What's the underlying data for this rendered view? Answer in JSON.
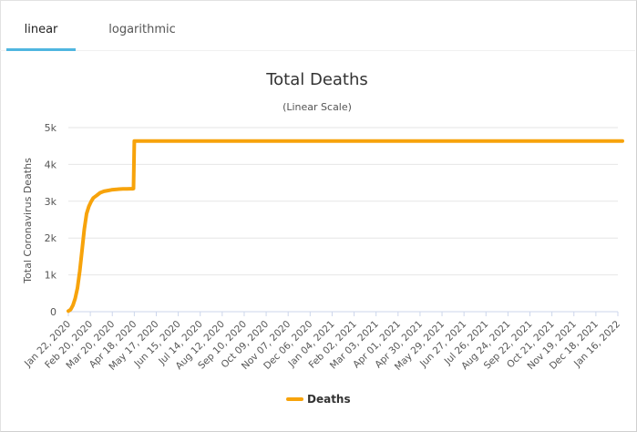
{
  "tabs": [
    {
      "label": "linear",
      "active": true
    },
    {
      "label": "logarithmic",
      "active": false
    }
  ],
  "colors": {
    "series": "#f7a30b",
    "tab_underline": "#4fb6e0",
    "grid": "#e6e6e6"
  },
  "chart_data": {
    "type": "line",
    "title": "Total Deaths",
    "subtitle": "(Linear Scale)",
    "ylabel": "Total Coronavirus Deaths",
    "xlabel": "",
    "ylim": [
      0,
      5000
    ],
    "yticks": [
      0,
      1000,
      2000,
      3000,
      4000,
      5000
    ],
    "ytick_labels": [
      "0",
      "1k",
      "2k",
      "3k",
      "4k",
      "5k"
    ],
    "xtick_labels": [
      "Jan 22, 2020",
      "Feb 20, 2020",
      "Mar 20, 2020",
      "Apr 18, 2020",
      "May 17, 2020",
      "Jun 15, 2020",
      "Jul 14, 2020",
      "Aug 12, 2020",
      "Sep 10, 2020",
      "Oct 09, 2020",
      "Nov 07, 2020",
      "Dec 06, 2020",
      "Jan 04, 2021",
      "Feb 02, 2021",
      "Mar 03, 2021",
      "Apr 01, 2021",
      "Apr 30, 2021",
      "May 29, 2021",
      "Jun 27, 2021",
      "Jul 26, 2021",
      "Aug 24, 2021",
      "Sep 22, 2021",
      "Oct 21, 2021",
      "Nov 19, 2021",
      "Dec 18, 2021",
      "Jan 16, 2022"
    ],
    "grid": true,
    "legend": "bottom-center",
    "series": [
      {
        "name": "Deaths",
        "color": "#f7a30b",
        "x": [
          "Jan 22, 2020",
          "Jan 25, 2020",
          "Jan 28, 2020",
          "Jan 31, 2020",
          "Feb 03, 2020",
          "Feb 06, 2020",
          "Feb 09, 2020",
          "Feb 12, 2020",
          "Feb 15, 2020",
          "Feb 18, 2020",
          "Feb 21, 2020",
          "Feb 24, 2020",
          "Feb 28, 2020",
          "Mar 04, 2020",
          "Mar 09, 2020",
          "Mar 14, 2020",
          "Mar 19, 2020",
          "Mar 24, 2020",
          "Mar 29, 2020",
          "Apr 03, 2020",
          "Apr 08, 2020",
          "Apr 13, 2020",
          "Apr 16, 2020",
          "Apr 17, 2020",
          "Apr 18, 2020",
          "May 17, 2020",
          "Jul 14, 2020",
          "Sep 10, 2020",
          "Nov 07, 2020",
          "Jan 04, 2021",
          "Mar 03, 2021",
          "Apr 30, 2021",
          "Jun 27, 2021",
          "Aug 24, 2021",
          "Oct 21, 2021",
          "Dec 18, 2021",
          "Jan 22, 2022"
        ],
        "y": [
          17,
          56,
          170,
          360,
          640,
          1100,
          1660,
          2240,
          2660,
          2860,
          2990,
          3090,
          3150,
          3230,
          3270,
          3290,
          3310,
          3320,
          3330,
          3333,
          3335,
          3338,
          3340,
          3345,
          4636,
          4636,
          4636,
          4636,
          4636,
          4636,
          4636,
          4636,
          4636,
          4636,
          4636,
          4636,
          4636
        ]
      }
    ]
  }
}
